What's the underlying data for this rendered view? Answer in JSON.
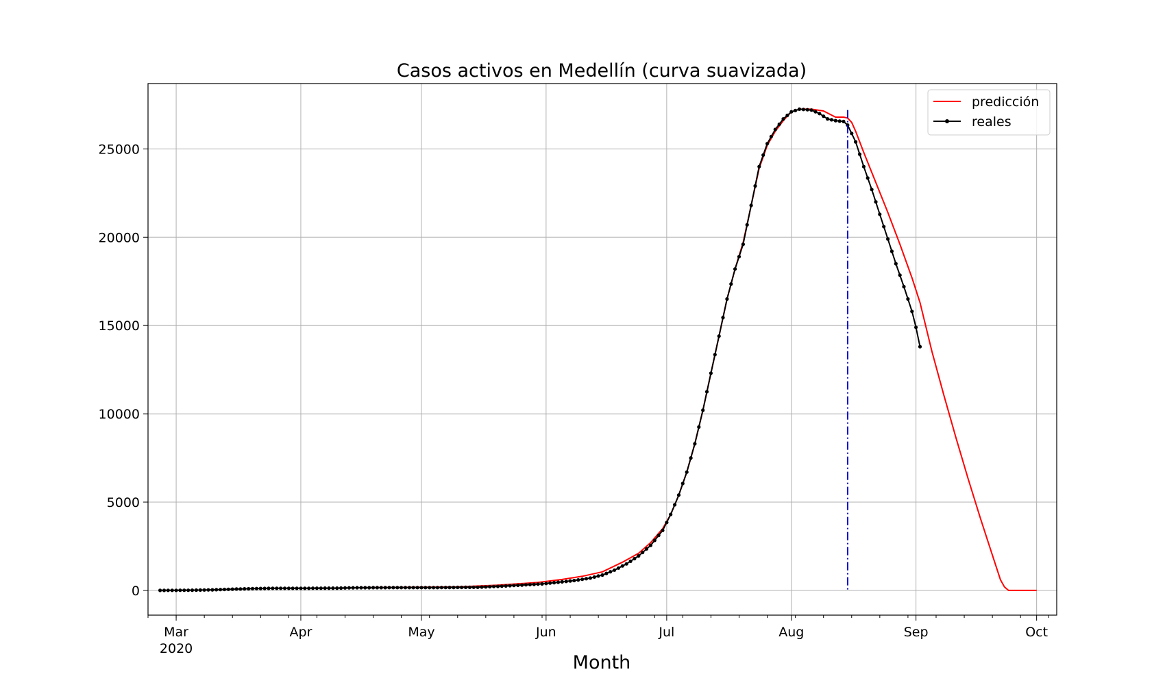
{
  "chart_data": {
    "type": "line",
    "title": "Casos activos en Medellín (curva suavizada)",
    "xlabel": "Month",
    "ylabel": "",
    "x_axis": {
      "type": "date",
      "range": [
        "2020-02-23",
        "2020-10-06"
      ],
      "major_ticks": [
        {
          "date": "2020-03-01",
          "label": "Mar",
          "sublabel": "2020"
        },
        {
          "date": "2020-04-01",
          "label": "Apr"
        },
        {
          "date": "2020-05-01",
          "label": "May"
        },
        {
          "date": "2020-06-01",
          "label": "Jun"
        },
        {
          "date": "2020-07-01",
          "label": "Jul"
        },
        {
          "date": "2020-08-01",
          "label": "Aug"
        },
        {
          "date": "2020-09-01",
          "label": "Sep"
        },
        {
          "date": "2020-10-01",
          "label": "Oct"
        }
      ],
      "minor_ticks": "weekly"
    },
    "y_axis": {
      "range": [
        -1400,
        28700
      ],
      "ticks": [
        0,
        5000,
        10000,
        15000,
        20000,
        25000
      ],
      "tick_labels": [
        "0",
        "5000",
        "10000",
        "15000",
        "20000",
        "25000"
      ]
    },
    "grid": true,
    "legend": {
      "placement": "top-right",
      "entries": [
        "predicción",
        "reales"
      ]
    },
    "colors": {
      "prediccion": "#ff0000",
      "reales": "#000000",
      "vline": "#0000cc"
    },
    "vertical_line": {
      "date": "2020-08-15",
      "style": "dash-dot"
    },
    "series": [
      {
        "name": "predicción",
        "color": "#ff0000",
        "marker": "none",
        "points": [
          [
            "2020-04-15",
            150
          ],
          [
            "2020-05-01",
            180
          ],
          [
            "2020-05-10",
            200
          ],
          [
            "2020-05-20",
            300
          ],
          [
            "2020-05-30",
            450
          ],
          [
            "2020-06-05",
            620
          ],
          [
            "2020-06-10",
            800
          ],
          [
            "2020-06-15",
            1050
          ],
          [
            "2020-06-20",
            1600
          ],
          [
            "2020-06-24",
            2100
          ],
          [
            "2020-06-27",
            2700
          ],
          [
            "2020-06-30",
            3500
          ],
          [
            "2020-07-02",
            4300
          ],
          [
            "2020-07-04",
            5400
          ],
          [
            "2020-07-06",
            6700
          ],
          [
            "2020-07-08",
            8300
          ],
          [
            "2020-07-10",
            10200
          ],
          [
            "2020-07-12",
            12300
          ],
          [
            "2020-07-14",
            14400
          ],
          [
            "2020-07-16",
            16500
          ],
          [
            "2020-07-18",
            18200
          ],
          [
            "2020-07-20",
            19700
          ],
          [
            "2020-07-22",
            21800
          ],
          [
            "2020-07-24",
            23900
          ],
          [
            "2020-07-26",
            25200
          ],
          [
            "2020-07-28",
            26000
          ],
          [
            "2020-07-30",
            26600
          ],
          [
            "2020-08-01",
            27100
          ],
          [
            "2020-08-03",
            27250
          ],
          [
            "2020-08-06",
            27250
          ],
          [
            "2020-08-09",
            27150
          ],
          [
            "2020-08-12",
            26800
          ],
          [
            "2020-08-14",
            26800
          ],
          [
            "2020-08-15",
            26750
          ],
          [
            "2020-08-16",
            26500
          ],
          [
            "2020-08-17",
            26000
          ],
          [
            "2020-08-19",
            24800
          ],
          [
            "2020-08-22",
            23100
          ],
          [
            "2020-08-25",
            21400
          ],
          [
            "2020-08-28",
            19600
          ],
          [
            "2020-08-31",
            17700
          ],
          [
            "2020-09-02",
            16300
          ],
          [
            "2020-09-05",
            13500
          ],
          [
            "2020-09-08",
            11000
          ],
          [
            "2020-09-11",
            8600
          ],
          [
            "2020-09-14",
            6300
          ],
          [
            "2020-09-17",
            4100
          ],
          [
            "2020-09-20",
            2000
          ],
          [
            "2020-09-22",
            600
          ],
          [
            "2020-09-23",
            200
          ],
          [
            "2020-09-24",
            0
          ],
          [
            "2020-10-01",
            0
          ]
        ]
      },
      {
        "name": "reales",
        "color": "#000000",
        "marker": "dot",
        "points": [
          [
            "2020-02-26",
            0
          ],
          [
            "2020-03-05",
            10
          ],
          [
            "2020-03-10",
            30
          ],
          [
            "2020-03-15",
            70
          ],
          [
            "2020-03-20",
            100
          ],
          [
            "2020-03-25",
            120
          ],
          [
            "2020-04-01",
            120
          ],
          [
            "2020-04-10",
            130
          ],
          [
            "2020-04-15",
            150
          ],
          [
            "2020-04-25",
            160
          ],
          [
            "2020-05-05",
            160
          ],
          [
            "2020-05-15",
            180
          ],
          [
            "2020-05-20",
            230
          ],
          [
            "2020-05-25",
            290
          ],
          [
            "2020-05-31",
            370
          ],
          [
            "2020-06-04",
            460
          ],
          [
            "2020-06-08",
            560
          ],
          [
            "2020-06-12",
            700
          ],
          [
            "2020-06-15",
            870
          ],
          [
            "2020-06-18",
            1150
          ],
          [
            "2020-06-21",
            1500
          ],
          [
            "2020-06-24",
            1950
          ],
          [
            "2020-06-27",
            2550
          ],
          [
            "2020-06-30",
            3400
          ],
          [
            "2020-07-02",
            4300
          ],
          [
            "2020-07-04",
            5400
          ],
          [
            "2020-07-06",
            6700
          ],
          [
            "2020-07-08",
            8300
          ],
          [
            "2020-07-10",
            10200
          ],
          [
            "2020-07-12",
            12300
          ],
          [
            "2020-07-14",
            14400
          ],
          [
            "2020-07-16",
            16500
          ],
          [
            "2020-07-18",
            18200
          ],
          [
            "2020-07-20",
            19600
          ],
          [
            "2020-07-22",
            21800
          ],
          [
            "2020-07-24",
            24000
          ],
          [
            "2020-07-26",
            25300
          ],
          [
            "2020-07-28",
            26100
          ],
          [
            "2020-07-30",
            26700
          ],
          [
            "2020-08-01",
            27100
          ],
          [
            "2020-08-03",
            27250
          ],
          [
            "2020-08-06",
            27200
          ],
          [
            "2020-08-08",
            27000
          ],
          [
            "2020-08-10",
            26700
          ],
          [
            "2020-08-12",
            26600
          ],
          [
            "2020-08-14",
            26550
          ],
          [
            "2020-08-15",
            26350
          ],
          [
            "2020-08-17",
            25400
          ],
          [
            "2020-08-19",
            24000
          ],
          [
            "2020-08-21",
            22700
          ],
          [
            "2020-08-23",
            21300
          ],
          [
            "2020-08-25",
            19900
          ],
          [
            "2020-08-27",
            18500
          ],
          [
            "2020-08-29",
            17200
          ],
          [
            "2020-08-31",
            15800
          ],
          [
            "2020-09-01",
            14900
          ],
          [
            "2020-09-02",
            13800
          ]
        ]
      }
    ]
  }
}
